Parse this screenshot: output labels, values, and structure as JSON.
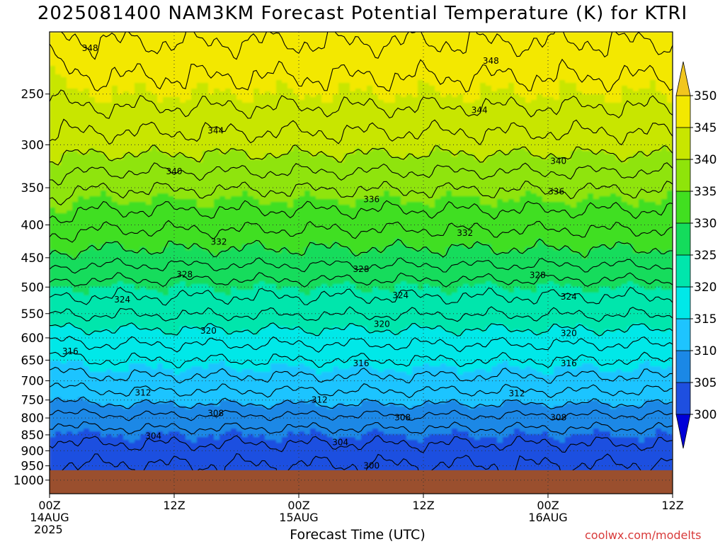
{
  "title": "2025081400 NAM3KM Forecast Potential Temperature (K) for KTRI",
  "xlabel": "Forecast Time (UTC)",
  "year_label": "2025",
  "credit": "coolwx.com/modelts",
  "chart_data": {
    "type": "heatmap",
    "title": "2025081400 NAM3KM Forecast Potential Temperature (K) for KTRI",
    "xlabel": "Forecast Time (UTC)",
    "ylabel": "",
    "y_axis": "pressure (hPa), log scale, inverted",
    "x_range_hours": [
      0,
      60
    ],
    "y_range_hpa": [
      1050,
      200
    ],
    "x_ticks": [
      {
        "hour": 0,
        "lines": [
          "00Z",
          "14AUG"
        ]
      },
      {
        "hour": 12,
        "lines": [
          "12Z"
        ]
      },
      {
        "hour": 24,
        "lines": [
          "00Z",
          "15AUG"
        ]
      },
      {
        "hour": 36,
        "lines": [
          "12Z"
        ]
      },
      {
        "hour": 48,
        "lines": [
          "00Z",
          "16AUG"
        ]
      },
      {
        "hour": 60,
        "lines": [
          "12Z"
        ]
      }
    ],
    "y_ticks": [
      250,
      300,
      350,
      400,
      450,
      500,
      550,
      600,
      650,
      700,
      750,
      800,
      850,
      900,
      950,
      1000
    ],
    "colorbar": {
      "ticks": [
        300,
        305,
        310,
        315,
        320,
        325,
        330,
        335,
        340,
        345,
        350
      ],
      "colors": [
        "#0000d8",
        "#1e4fe0",
        "#1b88e6",
        "#1ec4ff",
        "#00e8e8",
        "#00e6ac",
        "#14dc5c",
        "#41df20",
        "#8fe40a",
        "#c8e600",
        "#f3e800",
        "#f2c61e"
      ]
    },
    "ground_color": "#9a4f2e",
    "ground_level_hpa": 965,
    "contour_interval_K": 2,
    "contour_labels": [
      {
        "value": 348,
        "hour": 3.9,
        "hpa": 212
      },
      {
        "value": 348,
        "hour": 42.5,
        "hpa": 222
      },
      {
        "value": 344,
        "hour": 41.4,
        "hpa": 265
      },
      {
        "value": 344,
        "hour": 16.0,
        "hpa": 285
      },
      {
        "value": 340,
        "hour": 12.0,
        "hpa": 330
      },
      {
        "value": 340,
        "hour": 49.0,
        "hpa": 318
      },
      {
        "value": 336,
        "hour": 31.0,
        "hpa": 365
      },
      {
        "value": 336,
        "hour": 48.8,
        "hpa": 355
      },
      {
        "value": 332,
        "hour": 16.3,
        "hpa": 425
      },
      {
        "value": 332,
        "hour": 40.0,
        "hpa": 412
      },
      {
        "value": 328,
        "hour": 13.0,
        "hpa": 478
      },
      {
        "value": 328,
        "hour": 30.0,
        "hpa": 469
      },
      {
        "value": 328,
        "hour": 47.0,
        "hpa": 479
      },
      {
        "value": 324,
        "hour": 7.0,
        "hpa": 523
      },
      {
        "value": 324,
        "hour": 33.8,
        "hpa": 515
      },
      {
        "value": 324,
        "hour": 50.0,
        "hpa": 518
      },
      {
        "value": 320,
        "hour": 15.3,
        "hpa": 585
      },
      {
        "value": 320,
        "hour": 32.0,
        "hpa": 571
      },
      {
        "value": 320,
        "hour": 50.0,
        "hpa": 590
      },
      {
        "value": 316,
        "hour": 2.0,
        "hpa": 630
      },
      {
        "value": 316,
        "hour": 30.0,
        "hpa": 658
      },
      {
        "value": 316,
        "hour": 50.0,
        "hpa": 658
      },
      {
        "value": 312,
        "hour": 9.0,
        "hpa": 731
      },
      {
        "value": 312,
        "hour": 26.0,
        "hpa": 750
      },
      {
        "value": 312,
        "hour": 45.0,
        "hpa": 733
      },
      {
        "value": 308,
        "hour": 16.0,
        "hpa": 787
      },
      {
        "value": 308,
        "hour": 34.0,
        "hpa": 799
      },
      {
        "value": 308,
        "hour": 49.0,
        "hpa": 799
      },
      {
        "value": 304,
        "hour": 10.0,
        "hpa": 853
      },
      {
        "value": 304,
        "hour": 28.0,
        "hpa": 873
      },
      {
        "value": 300,
        "hour": 31.0,
        "hpa": 950
      }
    ]
  }
}
